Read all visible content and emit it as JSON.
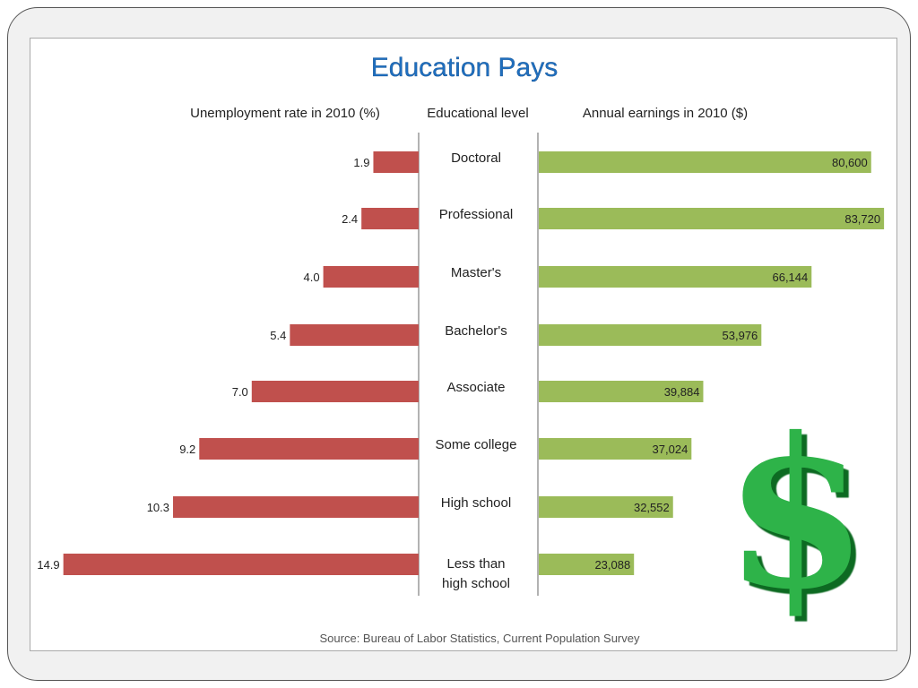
{
  "chart_data": {
    "type": "bar",
    "title": "Education Pays",
    "categories": [
      "Doctoral",
      "Professional",
      "Master's",
      "Bachelor's",
      "Associate",
      "Some college",
      "High school",
      "Less than high school"
    ],
    "category_header": "Educational level",
    "series": [
      {
        "name": "Unemployment rate in 2010 (%)",
        "values": [
          1.9,
          2.4,
          4.0,
          5.4,
          7.0,
          9.2,
          10.3,
          14.9
        ],
        "labels": [
          "1.9",
          "2.4",
          "4.0",
          "5.4",
          "7.0",
          "9.2",
          "10.3",
          "14.9"
        ],
        "color": "#c0504d",
        "direction": "left"
      },
      {
        "name": "Annual earnings in 2010 ($)",
        "values": [
          80600,
          83720,
          66144,
          53976,
          39884,
          37024,
          32552,
          23088
        ],
        "labels": [
          "80,600",
          "83,720",
          "66,144",
          "53,976",
          "39,884",
          "37,024",
          "32,552",
          "23,088"
        ],
        "color": "#9bbb59",
        "direction": "right"
      }
    ],
    "source": "Source: Bureau of Labor Statistics, Current Population Survey",
    "grid": false,
    "legend": "none"
  },
  "colors": {
    "title": "#1f6fbf",
    "dollar": "#2db34a"
  },
  "decoration": {
    "icon": "dollar-sign",
    "text": "$"
  }
}
